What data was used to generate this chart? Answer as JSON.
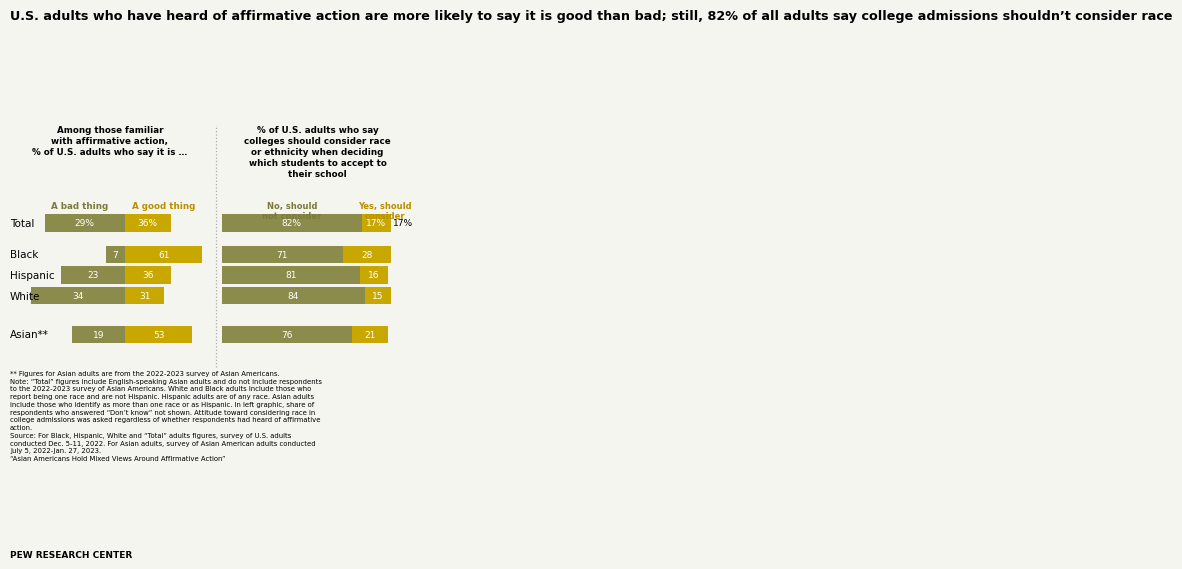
{
  "title": "U.S. adults who have heard of affirmative action are more likely to say it is good than bad; still, 82% of all adults say college admissions shouldn’t consider race",
  "left_header": "Among those familiar\nwith affirmative action,\n% of U.S. adults who say it is …",
  "right_header": "% of U.S. adults who say\ncolleges should consider race\nor ethnicity when deciding\nwhich students to accept to\ntheir school",
  "col_label_bad": "A bad thing",
  "col_label_good": "A good thing",
  "col_label_no": "No, should\nnot consider",
  "col_label_yes": "Yes, should\nconsider",
  "categories": [
    "Total",
    "Black",
    "Hispanic",
    "White",
    "Asian**"
  ],
  "left_bad": [
    29,
    7,
    23,
    34,
    19
  ],
  "left_good": [
    36,
    61,
    36,
    31,
    53
  ],
  "right_no": [
    82,
    71,
    81,
    84,
    76
  ],
  "right_yes": [
    17,
    28,
    16,
    15,
    21
  ],
  "left_bad_has_pct": [
    true,
    false,
    false,
    false,
    false
  ],
  "left_good_has_pct": [
    true,
    false,
    false,
    false,
    false
  ],
  "right_no_has_pct": [
    true,
    false,
    false,
    false,
    false
  ],
  "right_yes_has_pct": [
    true,
    false,
    false,
    false,
    false
  ],
  "color_bad": "#8B8B4B",
  "color_good": "#C8A800",
  "color_no": "#8B8B4B",
  "color_yes": "#C8A800",
  "color_label_bad": "#7a7a3a",
  "color_label_good": "#b89000",
  "color_label_no": "#7a7a3a",
  "color_label_yes": "#b89000",
  "footnote": "** Figures for Asian adults are from the 2022-2023 survey of Asian Americans.\nNote: “Total” figures include English-speaking Asian adults and do not include respondents\nto the 2022-2023 survey of Asian Americans. White and Black adults include those who\nreport being one race and are not Hispanic. Hispanic adults are of any race. Asian adults\ninclude those who identify as more than one race or as Hispanic. In left graphic, share of\nrespondents who answered “Don’t know” not shown. Attitude toward considering race in\ncollege admissions was asked regardless of whether respondents had heard of affirmative\naction.\nSource: For Black, Hispanic, White and “Total” adults figures, survey of U.S. adults\nconducted Dec. 5-11, 2022. For Asian adults, survey of Asian American adults conducted\nJuly 5, 2022-Jan. 27, 2023.\n“Asian Americans Hold Mixed Views Around Affirmative Action”",
  "source_label": "PEW RESEARCH CENTER",
  "bg_color": "#f5f5f0"
}
